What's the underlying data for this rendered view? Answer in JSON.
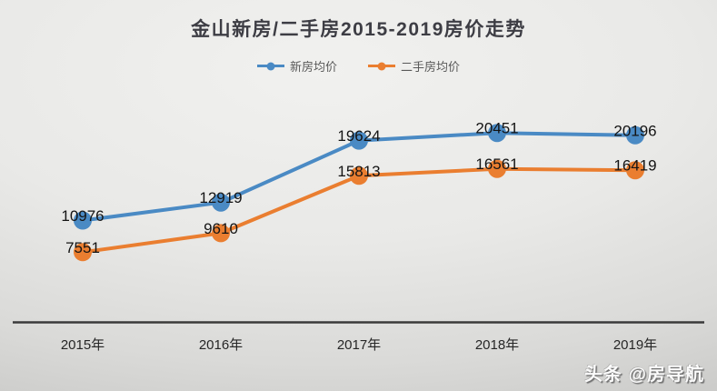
{
  "title": "金山新房/二手房2015-2019房价走势",
  "watermark": "头条 @房导航",
  "ui_colors": {
    "title_text": "#3d3d44",
    "legend_text": "#595959",
    "axis_line": "#3a3a3a",
    "tick_text": "#262626",
    "data_label_text": "#141414",
    "background_light": "#f1f1ef",
    "background_dark": "#bdbdbb"
  },
  "chart_data": {
    "type": "line",
    "title": "金山新房/二手房2015-2019房价走势",
    "categories": [
      "2015年",
      "2016年",
      "2017年",
      "2018年",
      "2019年"
    ],
    "series": [
      {
        "name": "新房均价",
        "color": "#4a8ac4",
        "values": [
          10976,
          12919,
          19624,
          20451,
          20196
        ]
      },
      {
        "name": "二手房均价",
        "color": "#ea7e30",
        "values": [
          7551,
          9610,
          15813,
          16561,
          16419
        ]
      }
    ],
    "xlabel": "",
    "ylabel": "",
    "ylim": [
      0,
      25000
    ],
    "grid": false,
    "legend_position": "top",
    "data_labels": true,
    "y_axis_visible": false,
    "x_axis_visible": true
  }
}
